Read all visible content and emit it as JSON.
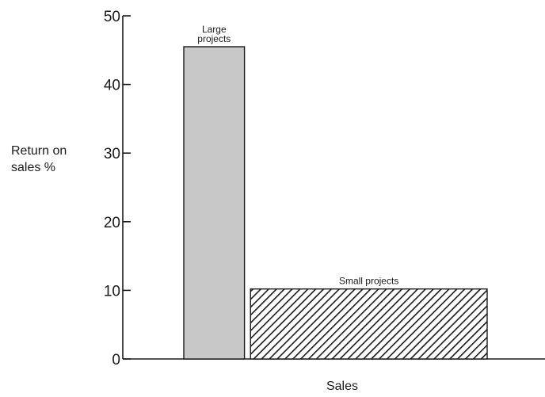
{
  "chart_data": {
    "type": "bar",
    "title": "",
    "xlabel": "Sales",
    "ylabel": [
      "Return on",
      "sales %"
    ],
    "ylim": [
      0,
      50
    ],
    "yticks": [
      0,
      10,
      20,
      30,
      40,
      50
    ],
    "grid": false,
    "legend": "none",
    "bars": [
      {
        "label": [
          "Large",
          "projects"
        ],
        "value": 45.5,
        "x_start": 0.0,
        "x_end": 0.2,
        "color": "#c8c8c8",
        "pattern": "solid"
      },
      {
        "label": [
          "Small projects"
        ],
        "value": 10.2,
        "x_start": 0.22,
        "x_end": 1.0,
        "color": "#ffffff",
        "pattern": "diagonal-hatch"
      }
    ]
  },
  "colors": {
    "axis": "#1a1a1a",
    "hatch": "#1a1a1a",
    "bar_outline": "#1a1a1a"
  }
}
